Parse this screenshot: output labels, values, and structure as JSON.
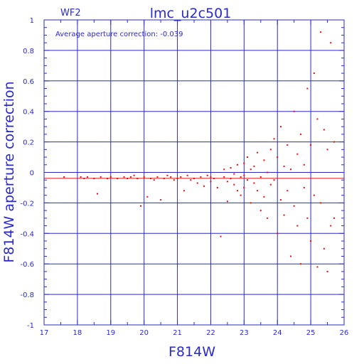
{
  "chart_data": {
    "type": "scatter",
    "title": "lmc_u2c501",
    "panel_label": "WF2",
    "annotation": "Average aperture correction: -0.039",
    "xlabel": "F814W",
    "ylabel": "F814W aperture correction",
    "xlim": [
      17,
      26
    ],
    "ylim": [
      -1,
      1
    ],
    "x_ticks": [
      "17",
      "18",
      "19",
      "20",
      "21",
      "22",
      "23",
      "24",
      "25",
      "26"
    ],
    "y_ticks": [
      "-1",
      "-0.8",
      "-0.6",
      "-0.4",
      "-0.2",
      "0",
      "0.2",
      "0.4",
      "0.6",
      "0.8",
      "1"
    ],
    "average_line": -0.039,
    "zero_line": 0,
    "grid": true,
    "colors": {
      "axes": "#2a2acc",
      "points": "#e01010",
      "avg_line": "#e01010"
    },
    "series": [
      {
        "points": [
          [
            17.6,
            -0.03
          ],
          [
            18.1,
            -0.03
          ],
          [
            18.2,
            -0.04
          ],
          [
            18.3,
            -0.03
          ],
          [
            18.5,
            -0.04
          ],
          [
            18.6,
            -0.14
          ],
          [
            18.7,
            -0.03
          ],
          [
            18.9,
            -0.04
          ],
          [
            19.0,
            -0.03
          ],
          [
            19.2,
            -0.04
          ],
          [
            19.4,
            -0.03
          ],
          [
            19.5,
            -0.04
          ],
          [
            19.6,
            -0.03
          ],
          [
            19.7,
            -0.02
          ],
          [
            19.8,
            -0.04
          ],
          [
            19.9,
            -0.22
          ],
          [
            20.0,
            -0.03
          ],
          [
            20.1,
            -0.16
          ],
          [
            20.2,
            -0.04
          ],
          [
            20.3,
            -0.05
          ],
          [
            20.4,
            -0.03
          ],
          [
            20.5,
            -0.18
          ],
          [
            20.6,
            -0.04
          ],
          [
            20.7,
            -0.02
          ],
          [
            20.8,
            -0.03
          ],
          [
            20.9,
            -0.05
          ],
          [
            21.0,
            -0.04
          ],
          [
            21.1,
            -0.03
          ],
          [
            21.2,
            -0.12
          ],
          [
            21.3,
            -0.02
          ],
          [
            21.4,
            -0.05
          ],
          [
            21.5,
            -0.04
          ],
          [
            21.6,
            -0.07
          ],
          [
            21.7,
            -0.03
          ],
          [
            21.8,
            -0.09
          ],
          [
            21.9,
            -0.02
          ],
          [
            22.0,
            -0.06
          ],
          [
            22.0,
            -0.03
          ],
          [
            22.1,
            -0.04
          ],
          [
            22.2,
            -0.1
          ],
          [
            22.3,
            -0.42
          ],
          [
            22.4,
            -0.03
          ],
          [
            22.4,
            0.02
          ],
          [
            22.5,
            -0.06
          ],
          [
            22.5,
            -0.19
          ],
          [
            22.6,
            -0.04
          ],
          [
            22.6,
            0.03
          ],
          [
            22.7,
            -0.08
          ],
          [
            22.7,
            -0.01
          ],
          [
            22.8,
            -0.12
          ],
          [
            22.8,
            0.05
          ],
          [
            22.9,
            -0.03
          ],
          [
            22.9,
            -0.15
          ],
          [
            23.0,
            0.06
          ],
          [
            23.0,
            -0.02
          ],
          [
            23.0,
            -0.1
          ],
          [
            23.1,
            -0.05
          ],
          [
            23.1,
            0.1
          ],
          [
            23.2,
            -0.2
          ],
          [
            23.2,
            0.02
          ],
          [
            23.3,
            -0.07
          ],
          [
            23.3,
            0.04
          ],
          [
            23.4,
            -0.12
          ],
          [
            23.4,
            0.13
          ],
          [
            23.5,
            -0.03
          ],
          [
            23.5,
            -0.25
          ],
          [
            23.6,
            0.08
          ],
          [
            23.6,
            -0.16
          ],
          [
            23.7,
            0.0
          ],
          [
            23.7,
            -0.3
          ],
          [
            23.8,
            0.15
          ],
          [
            23.8,
            -0.08
          ],
          [
            23.9,
            -0.05
          ],
          [
            23.9,
            0.22
          ],
          [
            24.0,
            -0.4
          ],
          [
            24.0,
            0.1
          ],
          [
            24.1,
            -0.18
          ],
          [
            24.1,
            0.3
          ],
          [
            24.2,
            0.04
          ],
          [
            24.2,
            -0.28
          ],
          [
            24.3,
            0.18
          ],
          [
            24.3,
            -0.12
          ],
          [
            24.4,
            0.02
          ],
          [
            24.4,
            -0.55
          ],
          [
            24.5,
            0.4
          ],
          [
            24.5,
            -0.22
          ],
          [
            24.6,
            0.12
          ],
          [
            24.6,
            -0.35
          ],
          [
            24.7,
            0.25
          ],
          [
            24.7,
            -0.6
          ],
          [
            24.8,
            0.05
          ],
          [
            24.8,
            -0.1
          ],
          [
            24.9,
            0.55
          ],
          [
            24.9,
            -0.3
          ],
          [
            25.0,
            0.18
          ],
          [
            25.0,
            -0.45
          ],
          [
            25.1,
            -0.15
          ],
          [
            25.1,
            0.65
          ],
          [
            25.2,
            0.35
          ],
          [
            25.2,
            -0.62
          ],
          [
            25.3,
            0.92
          ],
          [
            25.3,
            -0.2
          ],
          [
            25.4,
            0.28
          ],
          [
            25.4,
            -0.5
          ],
          [
            25.5,
            0.15
          ],
          [
            25.5,
            -0.65
          ],
          [
            25.6,
            0.85
          ],
          [
            25.6,
            -0.35
          ],
          [
            25.7,
            0.2
          ],
          [
            25.7,
            -0.3
          ]
        ]
      }
    ]
  }
}
